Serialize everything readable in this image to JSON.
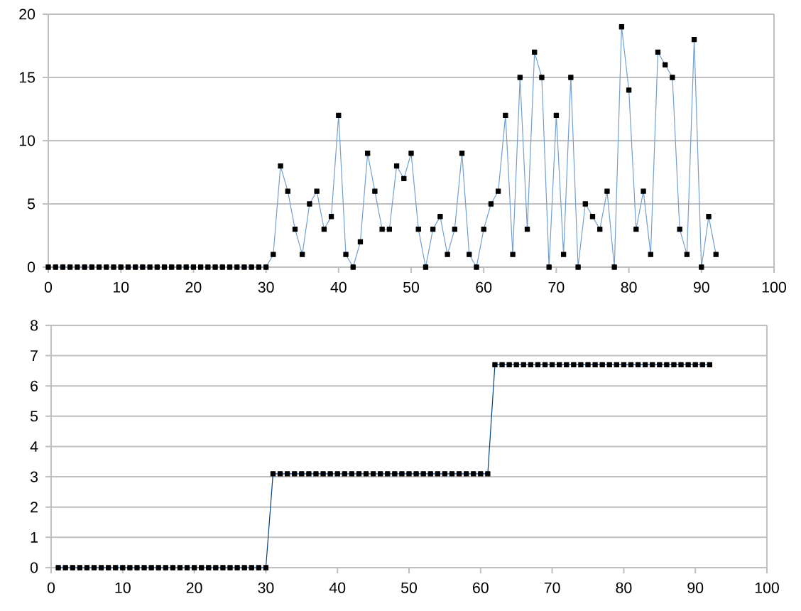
{
  "chart_data": [
    {
      "type": "line",
      "x": [
        0,
        1,
        2,
        3,
        4,
        5,
        6,
        7,
        8,
        9,
        10,
        11,
        12,
        13,
        14,
        15,
        16,
        17,
        18,
        19,
        20,
        21,
        22,
        23,
        24,
        25,
        26,
        27,
        28,
        29,
        30,
        31,
        32,
        33,
        34,
        35,
        36,
        37,
        38,
        39,
        40,
        41,
        42,
        43,
        44,
        45,
        46,
        47,
        48,
        49,
        50,
        51,
        52,
        53,
        54,
        55,
        56,
        57,
        58,
        59,
        60,
        61,
        62,
        63,
        64,
        65,
        66,
        67,
        68,
        69,
        70,
        71,
        72,
        73,
        74,
        75,
        76,
        77,
        78,
        79,
        80,
        81,
        82,
        83,
        84,
        85,
        86,
        87,
        88,
        89,
        90,
        91,
        92
      ],
      "values": [
        0,
        0,
        0,
        0,
        0,
        0,
        0,
        0,
        0,
        0,
        0,
        0,
        0,
        0,
        0,
        0,
        0,
        0,
        0,
        0,
        0,
        0,
        0,
        0,
        0,
        0,
        0,
        0,
        0,
        0,
        0,
        1,
        8,
        6,
        3,
        1,
        5,
        6,
        3,
        4,
        12,
        1,
        0,
        2,
        9,
        6,
        3,
        3,
        8,
        7,
        9,
        3,
        0,
        3,
        4,
        1,
        3,
        9,
        1,
        0,
        3,
        5,
        6,
        12,
        1,
        15,
        3,
        17,
        15,
        0,
        12,
        1,
        15,
        0,
        5,
        4,
        3,
        6,
        0,
        19,
        14,
        3,
        6,
        1,
        17,
        16,
        15,
        3,
        1,
        18,
        0,
        4,
        1
      ],
      "color": "#729fcf",
      "marker": "square",
      "xlim": [
        0,
        100
      ],
      "xticks": [
        0,
        10,
        20,
        30,
        40,
        50,
        60,
        70,
        80,
        90,
        100
      ],
      "ylim": [
        0,
        20
      ],
      "yticks": [
        0,
        5,
        10,
        15,
        20
      ],
      "grid": "y"
    },
    {
      "type": "line",
      "x": [
        1,
        2,
        3,
        4,
        5,
        6,
        7,
        8,
        9,
        10,
        11,
        12,
        13,
        14,
        15,
        16,
        17,
        18,
        19,
        20,
        21,
        22,
        23,
        24,
        25,
        26,
        27,
        28,
        29,
        30,
        31,
        32,
        33,
        34,
        35,
        36,
        37,
        38,
        39,
        40,
        41,
        42,
        43,
        44,
        45,
        46,
        47,
        48,
        49,
        50,
        51,
        52,
        53,
        54,
        55,
        56,
        57,
        58,
        59,
        60,
        61,
        62,
        63,
        64,
        65,
        66,
        67,
        68,
        69,
        70,
        71,
        72,
        73,
        74,
        75,
        76,
        77,
        78,
        79,
        80,
        81,
        82,
        83,
        84,
        85,
        86,
        87,
        88,
        89,
        90,
        91,
        92
      ],
      "values": [
        0,
        0,
        0,
        0,
        0,
        0,
        0,
        0,
        0,
        0,
        0,
        0,
        0,
        0,
        0,
        0,
        0,
        0,
        0,
        0,
        0,
        0,
        0,
        0,
        0,
        0,
        0,
        0,
        0,
        0,
        3.1,
        3.1,
        3.1,
        3.1,
        3.1,
        3.1,
        3.1,
        3.1,
        3.1,
        3.1,
        3.1,
        3.1,
        3.1,
        3.1,
        3.1,
        3.1,
        3.1,
        3.1,
        3.1,
        3.1,
        3.1,
        3.1,
        3.1,
        3.1,
        3.1,
        3.1,
        3.1,
        3.1,
        3.1,
        3.1,
        3.1,
        6.7,
        6.7,
        6.7,
        6.7,
        6.7,
        6.7,
        6.7,
        6.7,
        6.7,
        6.7,
        6.7,
        6.7,
        6.7,
        6.7,
        6.7,
        6.7,
        6.7,
        6.7,
        6.7,
        6.7,
        6.7,
        6.7,
        6.7,
        6.7,
        6.7,
        6.7,
        6.7,
        6.7,
        6.7,
        6.7,
        6.7
      ],
      "color": "#004586",
      "marker": "square",
      "xlim": [
        0,
        100
      ],
      "xticks": [
        0,
        10,
        20,
        30,
        40,
        50,
        60,
        70,
        80,
        90,
        100
      ],
      "ylim": [
        0,
        8
      ],
      "yticks": [
        0,
        1,
        2,
        3,
        4,
        5,
        6,
        7,
        8
      ],
      "grid": "y"
    }
  ]
}
